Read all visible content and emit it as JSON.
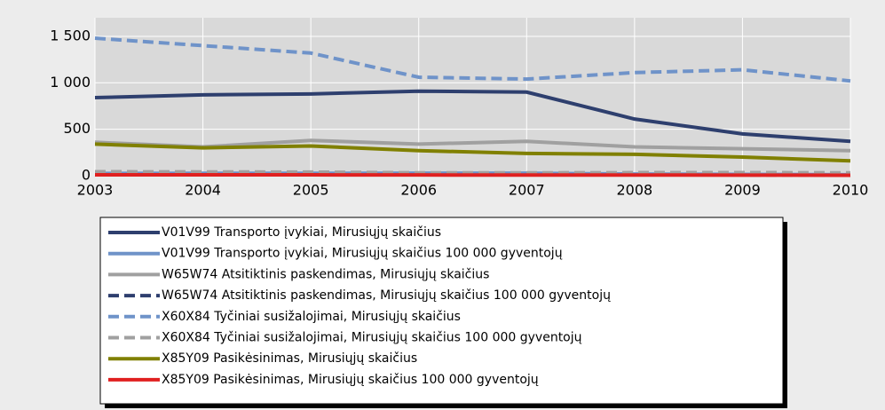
{
  "chart_data": {
    "type": "line",
    "x": [
      2003,
      2004,
      2005,
      2006,
      2007,
      2008,
      2009,
      2010
    ],
    "xlim": [
      2003,
      2010
    ],
    "xticks": [
      2003,
      2004,
      2005,
      2006,
      2007,
      2008,
      2009,
      2010
    ],
    "ylim": [
      0,
      1700
    ],
    "yticks": [
      0,
      500,
      {
        "value": 1000,
        "label": "1 000"
      },
      {
        "value": 1500,
        "label": "1 500"
      }
    ],
    "grid": true,
    "series": [
      {
        "name": "V01V99 Transporto įvykiai, Mirusiųjų skaičius",
        "color": "#2e3f6e",
        "dashed": false,
        "values": [
          840,
          870,
          880,
          910,
          900,
          610,
          450,
          370
        ]
      },
      {
        "name": "V01V99 Transporto įvykiai, Mirusiųjų skaičius 100 000 gyventojų",
        "color": "#6f93c9",
        "dashed": false,
        "values": [
          25,
          26,
          26,
          27,
          27,
          18,
          14,
          11
        ]
      },
      {
        "name": "W65W74 Atsitiktinis paskendimas, Mirusiųjų skaičius",
        "color": "#a0a0a0",
        "dashed": false,
        "values": [
          360,
          310,
          380,
          340,
          370,
          310,
          290,
          270
        ]
      },
      {
        "name": "W65W74 Atsitiktinis paskendimas, Mirusiųjų skaičius 100 000 gyventojų",
        "color": "#2e3f6e",
        "dashed": true,
        "values": [
          10,
          9,
          11,
          10,
          11,
          9,
          9,
          8
        ]
      },
      {
        "name": "X60X84 Tyčiniai susižalojimai, Mirusiųjų skaičius",
        "color": "#6f93c9",
        "dashed": true,
        "values": [
          1480,
          1400,
          1320,
          1060,
          1040,
          1110,
          1140,
          1020
        ]
      },
      {
        "name": "X60X84 Tyčiniai susižalojimai, Mirusiųjų skaičius 100 000 gyventojų",
        "color": "#a0a0a0",
        "dashed": true,
        "values": [
          43,
          41,
          39,
          31,
          31,
          33,
          34,
          31
        ]
      },
      {
        "name": "X85Y09 Pasikėsinimas, Mirusiųjų skaičius",
        "color": "#808000",
        "dashed": false,
        "values": [
          340,
          300,
          320,
          270,
          240,
          230,
          200,
          160
        ]
      },
      {
        "name": "X85Y09 Pasikėsinimas, Mirusiųjų skaičius 100 000 gyventojų",
        "color": "#e02020",
        "dashed": false,
        "values": [
          10,
          9,
          9,
          8,
          7,
          7,
          6,
          5
        ]
      }
    ]
  }
}
